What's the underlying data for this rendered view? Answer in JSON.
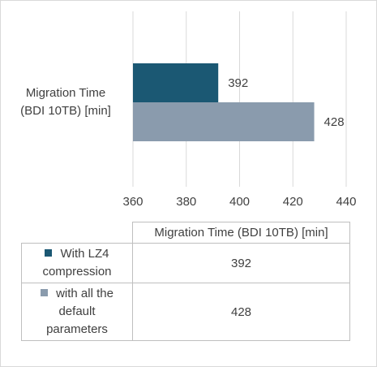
{
  "chart_data": {
    "type": "bar",
    "orientation": "horizontal",
    "title": "",
    "categories": [
      "Migration Time (BDI 10TB) [min]"
    ],
    "category_label_lines": [
      "Migration Time",
      "(BDI 10TB) [min]"
    ],
    "series": [
      {
        "name": "With LZ4 compression",
        "name_lines": [
          "With LZ4",
          "compression"
        ],
        "values": [
          392
        ],
        "color": "#1b5873"
      },
      {
        "name": "with all the default parameters",
        "name_lines": [
          "with all the",
          "default",
          "parameters"
        ],
        "values": [
          428
        ],
        "color": "#8a9bad"
      }
    ],
    "xlim": [
      360,
      440
    ],
    "xticks": [
      360,
      380,
      400,
      420,
      440
    ],
    "grid": true,
    "legend": "data-table",
    "data_table": true
  }
}
